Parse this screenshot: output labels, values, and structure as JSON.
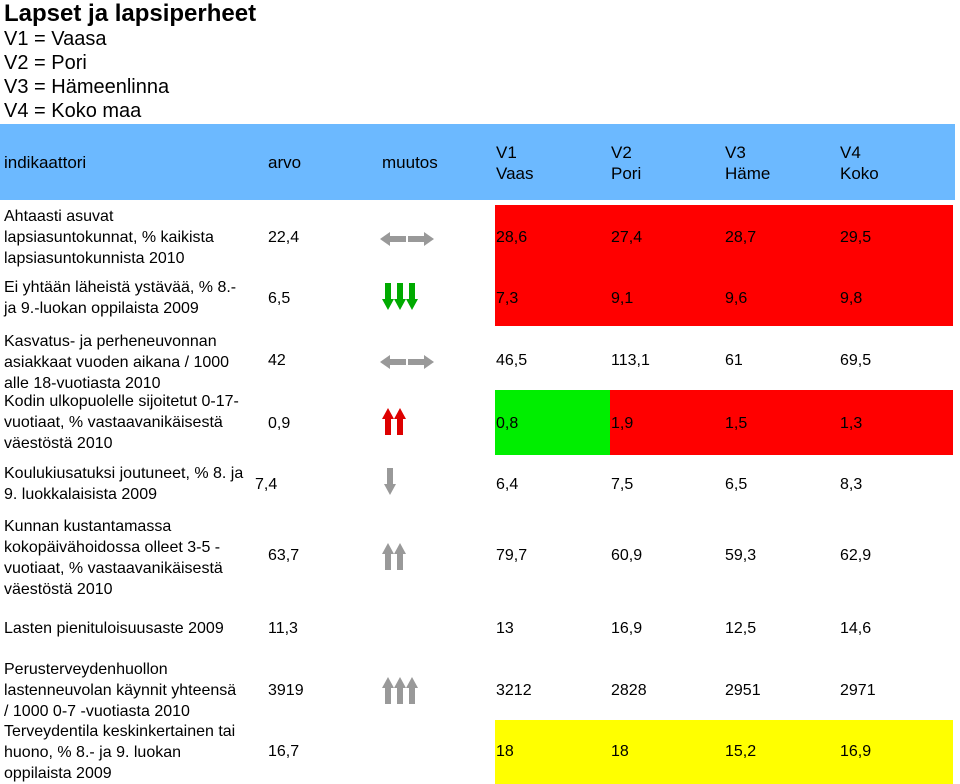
{
  "title": "Lapset ja lapsiperheet",
  "legend": [
    "V1 = Vaasa",
    "V2 = Pori",
    "V3 = Hämeenlinna",
    "V4 = Koko maa"
  ],
  "header": {
    "indicator": "indikaattori",
    "value": "arvo",
    "change": "muutos",
    "v1": [
      "V1",
      "Vaas"
    ],
    "v2": [
      "V2",
      "Pori"
    ],
    "v3": [
      "V3",
      "Häme"
    ],
    "v4": [
      "V4",
      "Koko"
    ]
  },
  "rows": [
    {
      "label": [
        "Ahtaasti asuvat",
        "lapsiasuntokunnat, % kaikista",
        "lapsiasuntokunnista 2010"
      ],
      "value": "22,4",
      "trend": "flat",
      "v1": "28,6",
      "v2": "27,4",
      "v3": "28,7",
      "v4": "29,5"
    },
    {
      "label": [
        "Ei yhtään läheistä ystävää, % 8.-",
        "ja 9.-luokan oppilaista 2009"
      ],
      "value": "6,5",
      "trend": "down-green",
      "v1": "7,3",
      "v2": "9,1",
      "v3": "9,6",
      "v4": "9,8"
    },
    {
      "label": [
        "Kasvatus- ja perheneuvonnan",
        "asiakkaat vuoden aikana / 1000",
        "alle 18-vuotiasta 2010"
      ],
      "value": "42",
      "trend": "flat",
      "v1": "46,5",
      "v2": "113,1",
      "v3": "61",
      "v4": "69,5"
    },
    {
      "label": [
        "Kodin ulkopuolelle sijoitetut 0-17-",
        "vuotiaat, % vastaavanikäisestä",
        "väestöstä 2010"
      ],
      "value": "0,9",
      "trend": "up-red",
      "v1": "0,8",
      "v2": "1,9",
      "v3": "1,5",
      "v4": "1,3"
    },
    {
      "label": [
        "Koulukiusatuksi joutuneet, % 8. ja",
        "9. luokkalaisista 2009"
      ],
      "value": "7,4",
      "trend": "down-grey",
      "v1": "6,4",
      "v2": "7,5",
      "v3": "6,5",
      "v4": "8,3"
    },
    {
      "label": [
        "Kunnan kustantamassa",
        "kokopäivähoidossa olleet 3-5 -",
        "vuotiaat, % vastaavanikäisestä",
        "väestöstä 2010"
      ],
      "value": "63,7",
      "trend": "up-grey-2",
      "v1": "79,7",
      "v2": "60,9",
      "v3": "59,3",
      "v4": "62,9"
    },
    {
      "label": [
        "Lasten pienituloisuusaste 2009"
      ],
      "value": "11,3",
      "trend": "none",
      "v1": "13",
      "v2": "16,9",
      "v3": "12,5",
      "v4": "14,6"
    },
    {
      "label": [
        "Perusterveydenhuollon",
        "lastenneuvolan käynnit yhteensä",
        "/ 1000 0-7 -vuotiasta 2010"
      ],
      "value": "3919",
      "trend": "up-grey-3",
      "v1": "3212",
      "v2": "2828",
      "v3": "2951",
      "v4": "2971"
    },
    {
      "label": [
        "Terveydentila keskinkertainen tai",
        "huono, %  8.- ja 9. luokan",
        "oppilaista 2009"
      ],
      "value": "16,7",
      "trend": "none",
      "v1": "18",
      "v2": "18",
      "v3": "15,2",
      "v4": "16,9"
    }
  ],
  "colors": {
    "header": "#6cb9ff",
    "red": "#ff0000",
    "green": "#00ee00",
    "yellow": "#ffff00",
    "arrow_grey": "#999999",
    "arrow_green": "#009900",
    "arrow_red": "#dd0000"
  }
}
